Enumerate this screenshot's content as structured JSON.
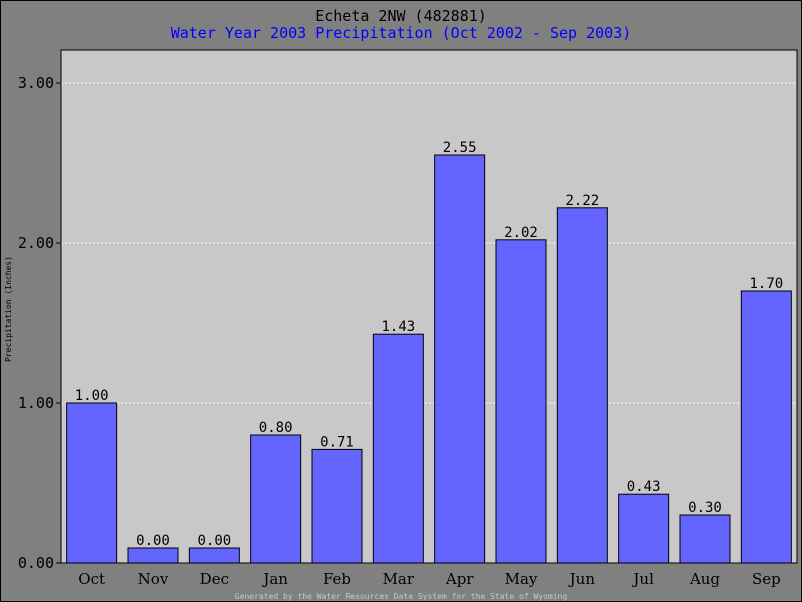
{
  "colors": {
    "background": "#808080",
    "plot_background": "#c8c8c8",
    "bar_fill": "#6464ff",
    "bar_stroke": "#000000",
    "grid": "#ffffff",
    "subtitle": "#0000ff",
    "text": "#000000",
    "footer": "#c8c8c8"
  },
  "footer": "Generated by the Water Resources Data System for the State of Wyoming",
  "chart_data": {
    "type": "bar",
    "title": "Echeta 2NW (482881)",
    "subtitle": "Water Year 2003 Precipitation (Oct 2002 - Sep 2003)",
    "xlabel": "",
    "ylabel": "Precipitation (Inches)",
    "ylim": [
      0,
      3.0
    ],
    "yticks": [
      0,
      1,
      2,
      3
    ],
    "ytick_labels": [
      "0.00",
      "1.00",
      "2.00",
      "3.00"
    ],
    "grid": "horizontal dotted",
    "categories": [
      "Oct",
      "Nov",
      "Dec",
      "Jan",
      "Feb",
      "Mar",
      "Apr",
      "May",
      "Jun",
      "Jul",
      "Aug",
      "Sep"
    ],
    "values": [
      1.0,
      0.0,
      0.0,
      0.8,
      0.71,
      1.43,
      2.55,
      2.02,
      2.22,
      0.43,
      0.3,
      1.7
    ],
    "data_labels": [
      "1.00",
      "0.00",
      "0.00",
      "0.80",
      "0.71",
      "1.43",
      "2.55",
      "2.02",
      "2.22",
      "0.43",
      "0.30",
      "1.70"
    ]
  }
}
